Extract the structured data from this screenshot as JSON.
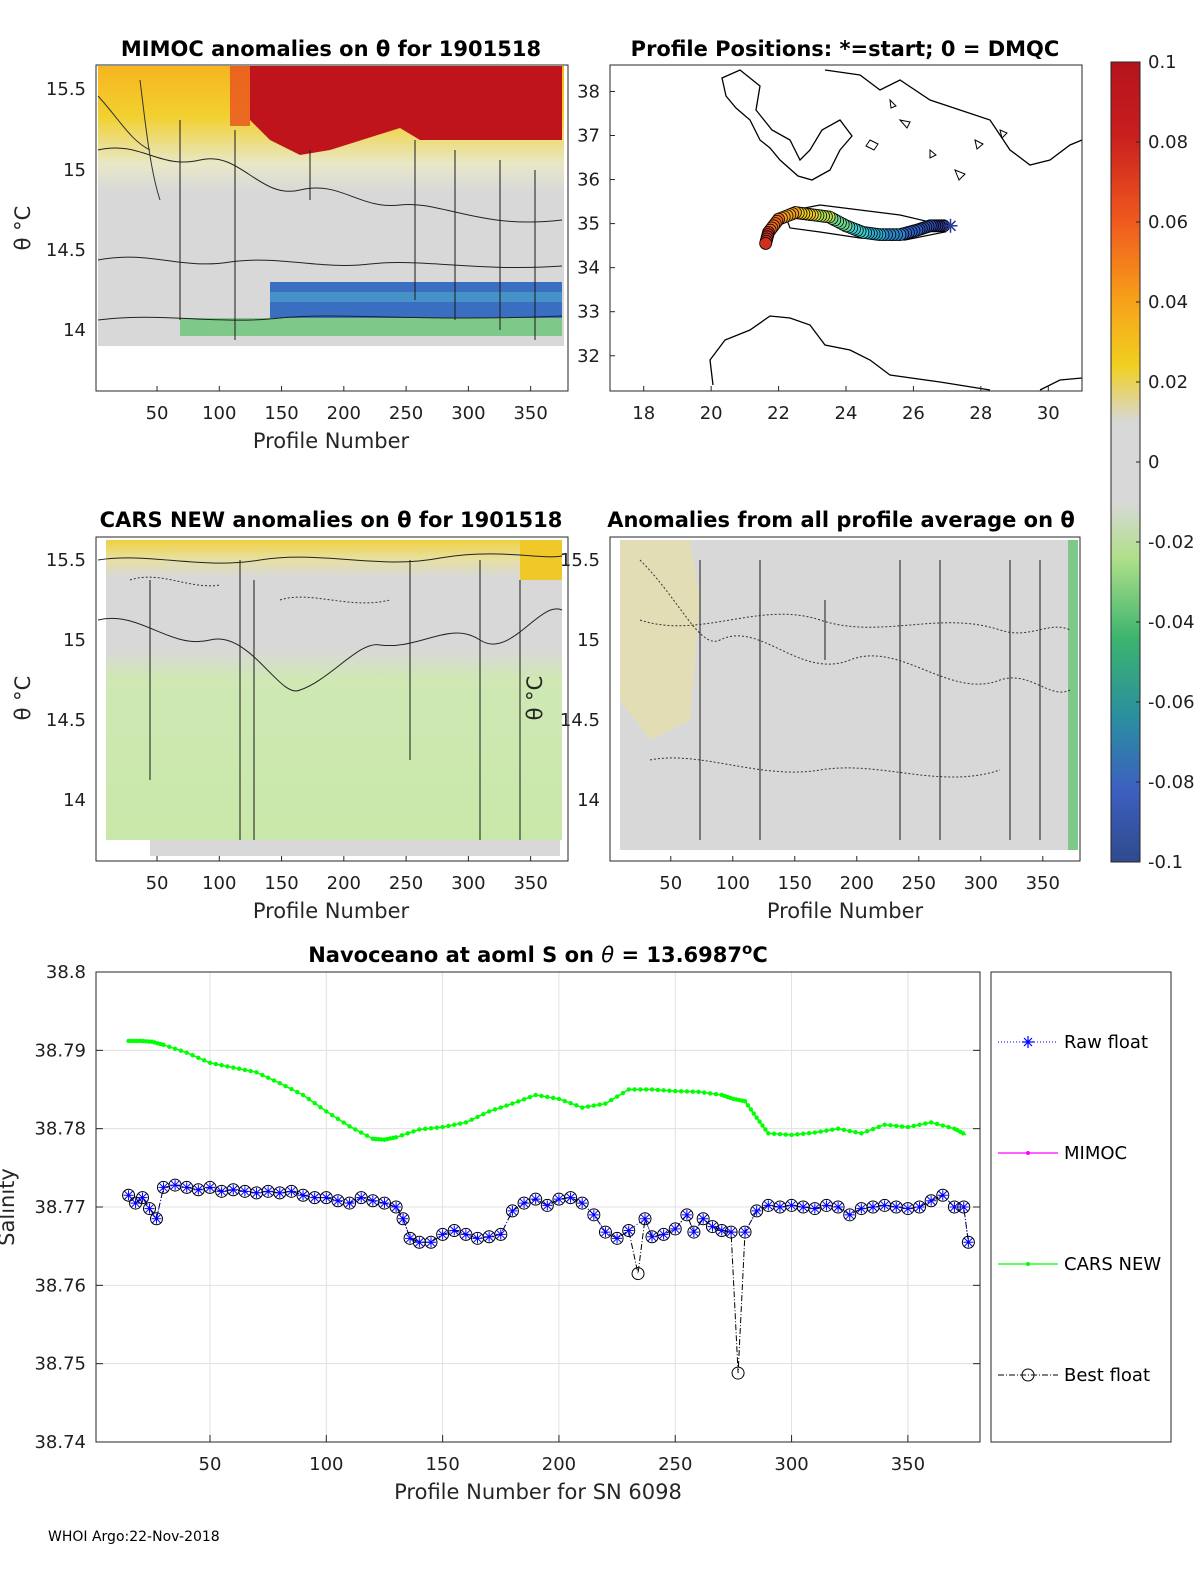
{
  "footer": "WHOI Argo:22-Nov-2018",
  "colors": {
    "raw": "#0000ff",
    "mimoc": "#ff00ff",
    "cars": "#00ff00",
    "best": "#000000"
  },
  "chart_data": [
    {
      "id": "mimoc",
      "type": "heatmap",
      "title": "MIMOC anomalies on θ  for 1901518",
      "xlabel": "Profile Number",
      "ylabel": "θ °C",
      "xlim": [
        1,
        380
      ],
      "ylim": [
        13.7,
        15.65
      ],
      "xticks": [
        "50",
        "100",
        "150",
        "200",
        "250",
        "300",
        "350"
      ],
      "yticks": [
        "14",
        "14.5",
        "15",
        "15.5"
      ]
    },
    {
      "id": "positions",
      "type": "scatter",
      "title": "Profile Positions: *=start; 0 = DMQC",
      "xlim": [
        17,
        31
      ],
      "ylim": [
        31.2,
        38.6
      ],
      "xticks": [
        "18",
        "20",
        "22",
        "24",
        "26",
        "28",
        "30"
      ],
      "yticks": [
        "32",
        "33",
        "34",
        "35",
        "36",
        "37",
        "38"
      ],
      "track": [
        {
          "lon": 26.9,
          "lat": 34.95
        },
        {
          "lon": 26.5,
          "lat": 34.95
        },
        {
          "lon": 26.1,
          "lat": 34.85
        },
        {
          "lon": 25.6,
          "lat": 34.75
        },
        {
          "lon": 25.0,
          "lat": 34.75
        },
        {
          "lon": 24.5,
          "lat": 34.8
        },
        {
          "lon": 24.0,
          "lat": 34.95
        },
        {
          "lon": 23.5,
          "lat": 35.15
        },
        {
          "lon": 23.0,
          "lat": 35.2
        },
        {
          "lon": 22.5,
          "lat": 35.25
        },
        {
          "lon": 22.0,
          "lat": 35.1
        },
        {
          "lon": 21.7,
          "lat": 34.8
        },
        {
          "lon": 21.6,
          "lat": 34.5
        }
      ]
    },
    {
      "id": "colorbar",
      "type": "colorbar",
      "ticks": [
        "0.1",
        "0.08",
        "0.06",
        "0.04",
        "0.02",
        "0",
        "-0.02",
        "-0.04",
        "-0.06",
        "-0.08",
        "-0.1"
      ],
      "range": [
        -0.1,
        0.1
      ]
    },
    {
      "id": "cars",
      "type": "heatmap",
      "title": "CARS NEW anomalies on θ for 1901518",
      "xlabel": "Profile Number",
      "ylabel": "θ °C",
      "xlim": [
        1,
        380
      ],
      "ylim": [
        13.6,
        15.65
      ],
      "xticks": [
        "50",
        "100",
        "150",
        "200",
        "250",
        "300",
        "350"
      ],
      "yticks": [
        "14",
        "14.5",
        "15",
        "15.5"
      ]
    },
    {
      "id": "allavg",
      "type": "heatmap",
      "title": "Anomalies from all profile average on θ",
      "xlabel": "Profile Number",
      "ylabel": "θ °C",
      "xlim": [
        1,
        380
      ],
      "ylim": [
        13.6,
        15.65
      ],
      "xticks": [
        "50",
        "100",
        "150",
        "200",
        "250",
        "300",
        "350"
      ],
      "yticks": [
        "14",
        "14.5",
        "15",
        "15.5"
      ]
    },
    {
      "id": "salinity",
      "type": "line",
      "title_prefix": "Navoceano at aoml S on ",
      "title_theta": "θ",
      "title_value": " = 13.6987",
      "title_unit": "o",
      "title_suffix": "C",
      "xlabel": "Profile Number for SN 6098",
      "ylabel": "Salinity",
      "xlim": [
        1,
        381
      ],
      "ylim": [
        38.74,
        38.8
      ],
      "xticks": [
        "50",
        "100",
        "150",
        "200",
        "250",
        "300",
        "350"
      ],
      "yticks": [
        "38.74",
        "38.75",
        "38.76",
        "38.77",
        "38.78",
        "38.79",
        "38.8"
      ],
      "legend": [
        "Raw float",
        "MIMOC",
        "CARS NEW",
        "Best float"
      ],
      "series": [
        {
          "name": "CARS NEW",
          "x": [
            15,
            20,
            25,
            30,
            40,
            50,
            60,
            70,
            80,
            90,
            100,
            110,
            120,
            125,
            130,
            140,
            150,
            160,
            170,
            180,
            190,
            200,
            210,
            220,
            230,
            240,
            250,
            260,
            270,
            275,
            280,
            285,
            290,
            300,
            310,
            320,
            330,
            340,
            350,
            360,
            370,
            375
          ],
          "y": [
            38.7912,
            38.7912,
            38.7911,
            38.7907,
            38.7897,
            38.7884,
            38.7878,
            38.7872,
            38.7858,
            38.7843,
            38.7822,
            38.7803,
            38.7787,
            38.7786,
            38.7789,
            38.7799,
            38.7802,
            38.7808,
            38.7822,
            38.7832,
            38.7843,
            38.7838,
            38.7827,
            38.7832,
            38.785,
            38.785,
            38.7848,
            38.7847,
            38.7843,
            38.7838,
            38.7835,
            38.7814,
            38.7794,
            38.7792,
            38.7795,
            38.78,
            38.7794,
            38.7805,
            38.7802,
            38.7808,
            38.78,
            38.7792
          ]
        },
        {
          "name": "Best float",
          "x": [
            15,
            18,
            21,
            24,
            27,
            30,
            35,
            40,
            45,
            50,
            55,
            60,
            65,
            70,
            75,
            80,
            85,
            90,
            95,
            100,
            105,
            110,
            115,
            120,
            125,
            130,
            133,
            136,
            140,
            145,
            150,
            155,
            160,
            165,
            170,
            175,
            180,
            185,
            190,
            195,
            200,
            205,
            210,
            215,
            220,
            225,
            230,
            234,
            237,
            240,
            245,
            250,
            255,
            258,
            262,
            266,
            270,
            274,
            277,
            280,
            285,
            290,
            295,
            300,
            305,
            310,
            315,
            320,
            325,
            330,
            335,
            340,
            345,
            350,
            355,
            360,
            365,
            370,
            374,
            376
          ],
          "y": [
            38.7715,
            38.7705,
            38.7712,
            38.7698,
            38.7685,
            38.7725,
            38.7728,
            38.7725,
            38.7722,
            38.7725,
            38.772,
            38.7722,
            38.772,
            38.7718,
            38.772,
            38.7718,
            38.772,
            38.7715,
            38.7712,
            38.7712,
            38.7708,
            38.7705,
            38.7712,
            38.7708,
            38.7705,
            38.77,
            38.7685,
            38.766,
            38.7655,
            38.7655,
            38.7665,
            38.767,
            38.7665,
            38.766,
            38.7662,
            38.7665,
            38.7695,
            38.7705,
            38.771,
            38.7702,
            38.771,
            38.7712,
            38.7705,
            38.769,
            38.7668,
            38.766,
            38.767,
            38.7615,
            38.7685,
            38.7662,
            38.7665,
            38.7672,
            38.769,
            38.7668,
            38.7685,
            38.7675,
            38.767,
            38.7668,
            38.7488,
            38.7668,
            38.7695,
            38.7702,
            38.77,
            38.7702,
            38.77,
            38.7698,
            38.7702,
            38.77,
            38.769,
            38.7698,
            38.77,
            38.7702,
            38.77,
            38.7698,
            38.77,
            38.7708,
            38.7715,
            38.77,
            38.77,
            38.7655
          ]
        }
      ]
    }
  ]
}
